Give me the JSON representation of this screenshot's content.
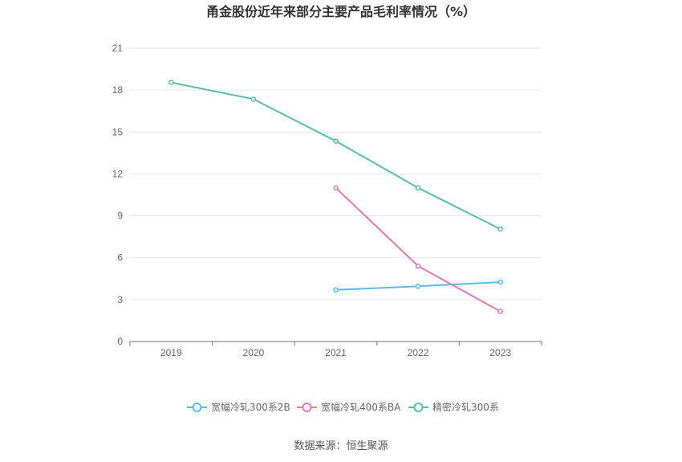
{
  "chart_data": {
    "type": "line",
    "title": "甬金股份近年来部分主要产品毛利率情况（%）",
    "categories": [
      "2019",
      "2020",
      "2021",
      "2022",
      "2023"
    ],
    "ylim": [
      0,
      21
    ],
    "yticks": [
      "0",
      "3",
      "6",
      "9",
      "12",
      "15",
      "18",
      "21"
    ],
    "grid": true,
    "legend_position": "bottom",
    "series": [
      {
        "name": "宽幅冷轧300系2B",
        "color": "#5bbbe9",
        "values": [
          null,
          null,
          3.7,
          3.95,
          4.25
        ]
      },
      {
        "name": "宽幅冷轧400系BA",
        "color": "#de7ab8",
        "values": [
          null,
          null,
          11.0,
          5.4,
          2.15
        ]
      },
      {
        "name": "精密冷轧300系",
        "color": "#5cbf9f",
        "values": [
          18.55,
          17.35,
          14.35,
          11.0,
          8.05
        ]
      }
    ]
  },
  "source": "数据来源：恒生聚源"
}
